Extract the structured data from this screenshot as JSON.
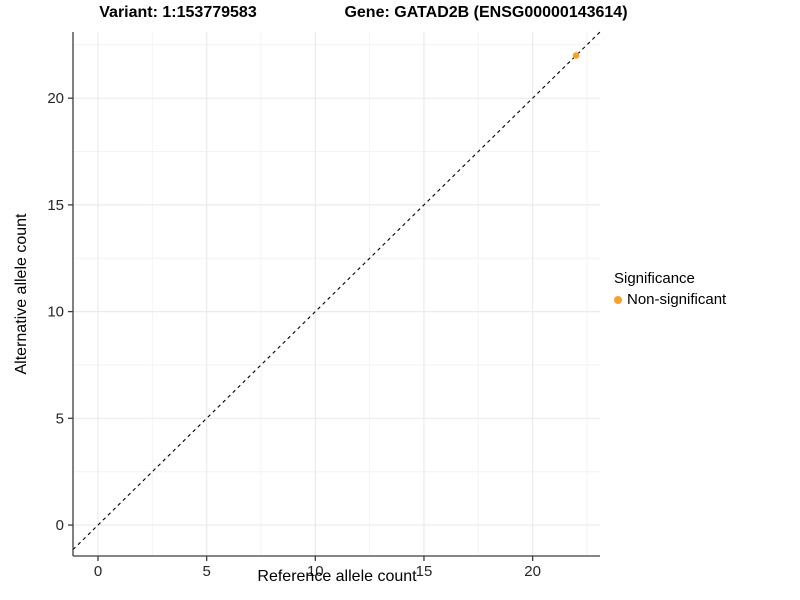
{
  "titles": {
    "variant": "Variant: 1:153779583",
    "gene": "Gene: GATAD2B (ENSG00000143614)"
  },
  "chart_data": {
    "type": "scatter",
    "title_left": "Variant: 1:153779583",
    "title_right": "Gene: GATAD2B (ENSG00000143614)",
    "xlabel": "Reference allele count",
    "ylabel": "Alternative allele count",
    "xlim": [
      -1.15,
      23.1
    ],
    "ylim": [
      -1.45,
      23.1
    ],
    "x_ticks": [
      0,
      5,
      10,
      15,
      20
    ],
    "y_ticks": [
      0,
      5,
      10,
      15,
      20
    ],
    "x_minor_ticks": [
      2.5,
      7.5,
      12.5,
      17.5,
      22.5
    ],
    "y_minor_ticks": [
      2.5,
      7.5,
      12.5,
      17.5,
      22.5
    ],
    "grid": "major+minor",
    "legend_position": "right",
    "reference_line": {
      "kind": "identity",
      "style": "dashed",
      "color": "#000000"
    },
    "series": [
      {
        "name": "Non-significant",
        "color": "#F8A12F",
        "points": [
          {
            "x": 22,
            "y": 22
          }
        ]
      }
    ],
    "legend": {
      "title": "Significance",
      "entries": [
        {
          "label": "Non-significant",
          "color": "#F8A12F"
        }
      ]
    }
  },
  "colors": {
    "background": "#FFFFFF",
    "grid_major": "#EBEBEB",
    "grid_minor": "#F3F3F3",
    "axis_line": "#3C3C3C",
    "tick_label": "#262626",
    "point": "#F8A12F",
    "identity_line": "#000000"
  }
}
